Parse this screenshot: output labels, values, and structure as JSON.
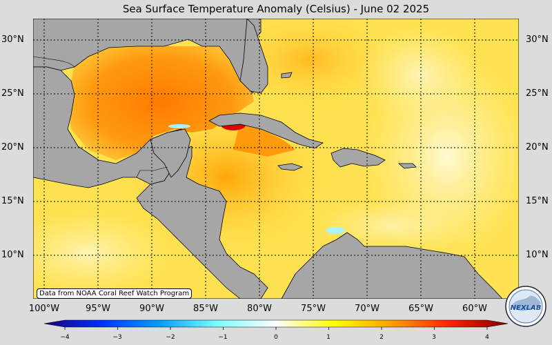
{
  "title": "Sea Surface Temperature Anomaly (Celsius) - June 02 2025",
  "latitude_labels": [
    "30°N",
    "25°N",
    "20°N",
    "15°N",
    "10°N"
  ],
  "longitude_labels": [
    "100°W",
    "95°W",
    "90°W",
    "85°W",
    "80°W",
    "75°W",
    "70°W",
    "65°W",
    "60°W"
  ],
  "credit": "Data from NOAA Coral Reef Watch Program",
  "colorbar": {
    "ticks": [
      "−4",
      "−3",
      "−2",
      "−1",
      "0",
      "1",
      "2",
      "3",
      "4"
    ],
    "range": [
      -4,
      4
    ],
    "stops": [
      "#1a0080",
      "#0030ff",
      "#00a0ff",
      "#80ffff",
      "#ffffff",
      "#ffff00",
      "#ffa000",
      "#ff2000",
      "#800000"
    ]
  },
  "colors": {
    "land": "#a6a6a6",
    "warm": "#ff8c00",
    "hot": "#e00000",
    "mild": "#ffdd33"
  },
  "logo": {
    "text": "NEXLAB"
  }
}
